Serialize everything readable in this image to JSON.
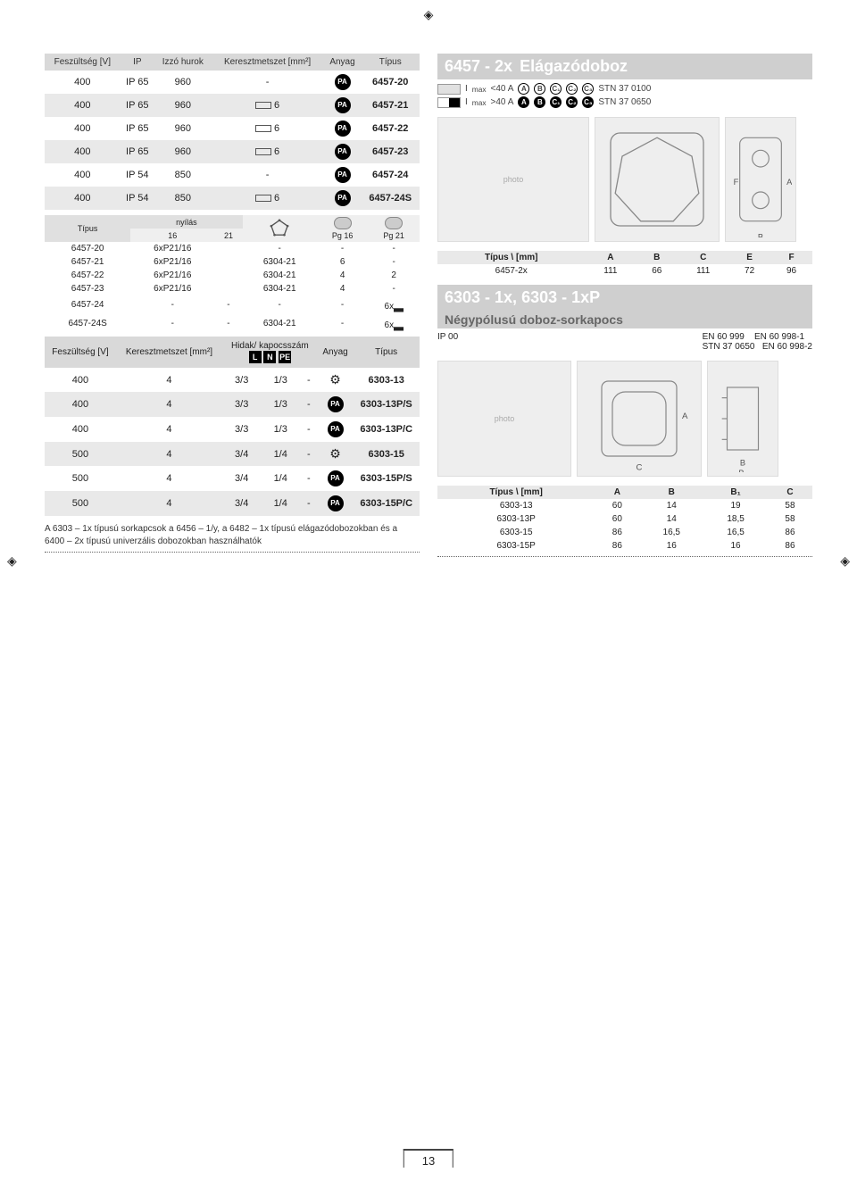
{
  "page_number": "13",
  "section1": {
    "title_code": "6457 - 2x",
    "title_desc": "Elágazódoboz",
    "table_headers": [
      "Feszültség [V]",
      "IP",
      "Izzó hurok",
      "Keresztmetszet [mm²]",
      "Anyag",
      "Típus"
    ],
    "rows": [
      {
        "v": "400",
        "ip": "IP 65",
        "loop": "960",
        "cs": "-",
        "mat": "PA",
        "type": "6457-20"
      },
      {
        "v": "400",
        "ip": "IP 65",
        "loop": "960",
        "cs": "6",
        "mat": "PA",
        "type": "6457-21"
      },
      {
        "v": "400",
        "ip": "IP 65",
        "loop": "960",
        "cs": "6",
        "mat": "PA",
        "type": "6457-22"
      },
      {
        "v": "400",
        "ip": "IP 65",
        "loop": "960",
        "cs": "6",
        "mat": "PA",
        "type": "6457-23"
      },
      {
        "v": "400",
        "ip": "IP 54",
        "loop": "850",
        "cs": "-",
        "mat": "PA",
        "type": "6457-24"
      },
      {
        "v": "400",
        "ip": "IP 54",
        "loop": "850",
        "cs": "6",
        "mat": "PA",
        "type": "6457-24S"
      }
    ],
    "standards": {
      "line1_prefix": "I",
      "line1_sub": "max",
      "line1_cond": "<40 A",
      "line1_std": "STN 37 0100",
      "line2_prefix": "I",
      "line2_sub": "max",
      "line2_cond": ">40 A",
      "line2_std": "STN 37 0650",
      "badge_a": "A",
      "badge_b": "B",
      "badge_c1": "C₁",
      "badge_c2": "C₂",
      "badge_c3": "C₃"
    },
    "openings": {
      "hdr_type": "Típus",
      "hdr_nyilas": "nyílás",
      "cols": [
        "16",
        "21",
        "",
        "Pg 16",
        "Pg 21"
      ],
      "rows": [
        [
          "6457-20",
          "6xP21/16",
          "",
          "-",
          "-",
          "-"
        ],
        [
          "6457-21",
          "6xP21/16",
          "",
          "6304-21",
          "6",
          "-"
        ],
        [
          "6457-22",
          "6xP21/16",
          "",
          "6304-21",
          "4",
          "2"
        ],
        [
          "6457-23",
          "6xP21/16",
          "",
          "6304-21",
          "4",
          "-"
        ],
        [
          "6457-24",
          "-",
          "-",
          "-",
          "-",
          "6x"
        ],
        [
          "6457-24S",
          "-",
          "-",
          "6304-21",
          "-",
          "6x"
        ]
      ]
    },
    "dim_table": {
      "hdr": [
        "Típus \\ [mm]",
        "A",
        "B",
        "C",
        "E",
        "F"
      ],
      "rows": [
        [
          "6457-2x",
          "111",
          "66",
          "111",
          "72",
          "96"
        ]
      ]
    }
  },
  "section2": {
    "title_code": "6303 - 1x, 6303 - 1xP",
    "title_desc": "Négypólusú doboz-sorkapocs",
    "ip_label": "IP 00",
    "std1": "EN 60 999",
    "std2": "EN 60 998-1",
    "std3": "STN 37 0650",
    "std4": "EN 60 998-2",
    "table_headers": [
      "Feszültség [V]",
      "Keresztmetszet [mm²]",
      "Hidak/ kapocsszám",
      "",
      "",
      "Anyag",
      "Típus"
    ],
    "badge_L": "L",
    "badge_N": "N",
    "badge_PE": "PE",
    "rows": [
      {
        "v": "400",
        "cs": "4",
        "b1": "3/3",
        "b2": "1/3",
        "b3": "-",
        "mat": "gear",
        "type": "6303-13"
      },
      {
        "v": "400",
        "cs": "4",
        "b1": "3/3",
        "b2": "1/3",
        "b3": "-",
        "mat": "PA",
        "type": "6303-13P/S"
      },
      {
        "v": "400",
        "cs": "4",
        "b1": "3/3",
        "b2": "1/3",
        "b3": "-",
        "mat": "PA",
        "type": "6303-13P/C"
      },
      {
        "v": "500",
        "cs": "4",
        "b1": "3/4",
        "b2": "1/4",
        "b3": "-",
        "mat": "gear",
        "type": "6303-15"
      },
      {
        "v": "500",
        "cs": "4",
        "b1": "3/4",
        "b2": "1/4",
        "b3": "-",
        "mat": "PA",
        "type": "6303-15P/S"
      },
      {
        "v": "500",
        "cs": "4",
        "b1": "3/4",
        "b2": "1/4",
        "b3": "-",
        "mat": "PA",
        "type": "6303-15P/C"
      }
    ],
    "footnote": "A 6303 – 1x típusú sorkapcsok a 6456 – 1/y, a 6482 – 1x típusú elágazódobozokban és a 6400 – 2x típusú univerzális dobozokban használhatók",
    "dim_table": {
      "hdr": [
        "Típus \\ [mm]",
        "A",
        "B",
        "B₁",
        "C"
      ],
      "rows": [
        [
          "6303-13",
          "60",
          "14",
          "19",
          "58"
        ],
        [
          "6303-13P",
          "60",
          "14",
          "18,5",
          "58"
        ],
        [
          "6303-15",
          "86",
          "16,5",
          "16,5",
          "86"
        ],
        [
          "6303-15P",
          "86",
          "16",
          "16",
          "86"
        ]
      ]
    }
  }
}
